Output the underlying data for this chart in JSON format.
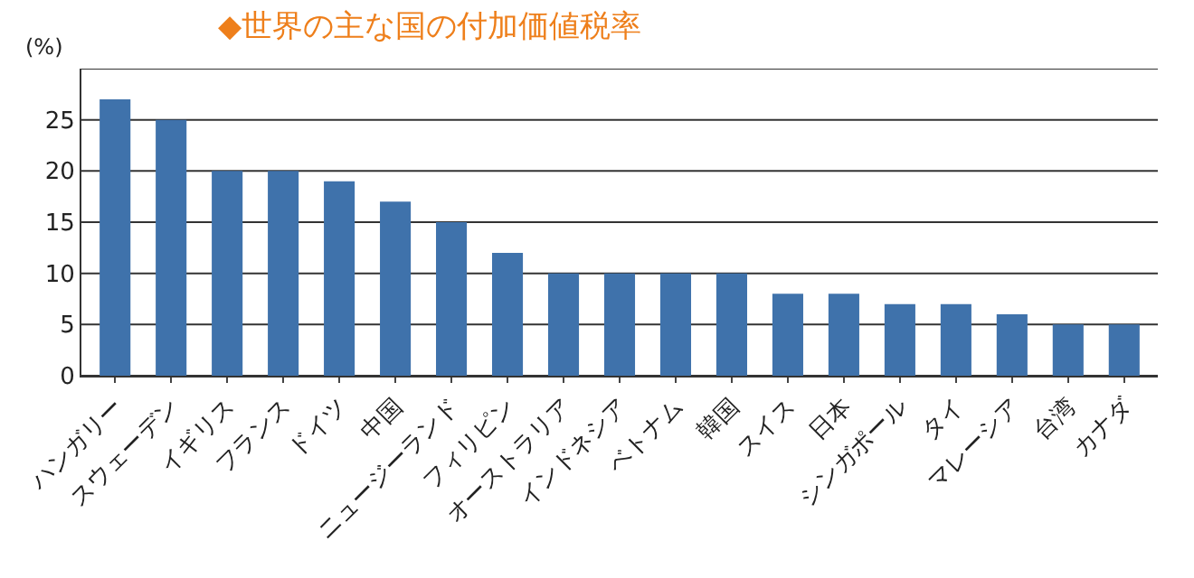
{
  "chart_data": {
    "type": "bar",
    "title": "◆世界の主な国の付加価値税率",
    "ylabel": "(%)",
    "categories": [
      "ハンガリー",
      "スウェーデン",
      "イギリス",
      "フランス",
      "ドイツ",
      "中国",
      "ニュージーランド",
      "フィリピン",
      "オーストラリア",
      "インドネシア",
      "ベトナム",
      "韓国",
      "スイス",
      "日本",
      "シンガポール",
      "タイ",
      "マレーシア",
      "台湾",
      "カナダ"
    ],
    "values": [
      27,
      25,
      20,
      20,
      19,
      17,
      15,
      12,
      10,
      10,
      10,
      10,
      8,
      8,
      7,
      7,
      6,
      5,
      5
    ],
    "color": "#3f72ab",
    "ylim": [
      0,
      30
    ],
    "yticks": [
      0,
      5,
      10,
      15,
      20,
      25,
      {
        "value": 30,
        "label": null
      }
    ],
    "grid": "y",
    "legend": false
  }
}
